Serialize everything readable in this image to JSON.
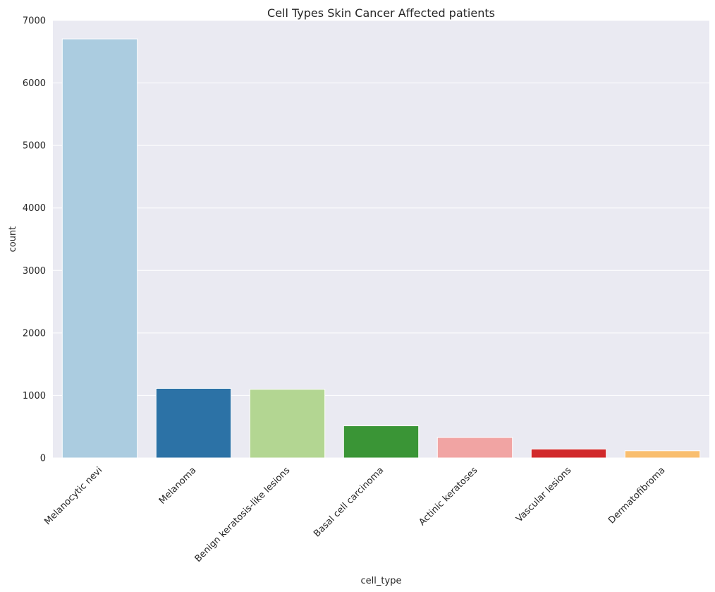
{
  "chart_data": {
    "type": "bar",
    "title": "Cell Types Skin Cancer Affected patients",
    "xlabel": "cell_type",
    "ylabel": "count",
    "ylim": [
      0,
      7000
    ],
    "yticks": [
      0,
      1000,
      2000,
      3000,
      4000,
      5000,
      6000,
      7000
    ],
    "grid": true,
    "categories": [
      "Melanocytic nevi",
      "Melanoma",
      "Benign keratosis-like lesions",
      "Basal cell carcinoma",
      "Actinic keratoses",
      "Vascular lesions",
      "Dermatofibroma"
    ],
    "values": [
      6705,
      1113,
      1099,
      514,
      327,
      142,
      115
    ],
    "colors": [
      "#abcce0",
      "#2c72a6",
      "#b3d692",
      "#3a9536",
      "#f1a4a3",
      "#d1292b",
      "#f9be6f"
    ],
    "background_color": "#eaeaf2"
  }
}
